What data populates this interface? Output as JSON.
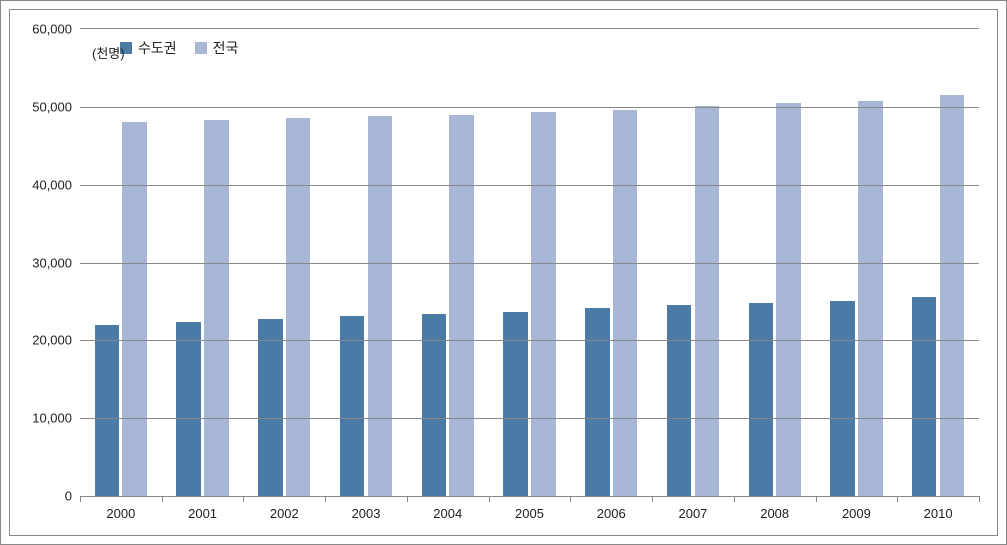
{
  "chart": {
    "type": "bar",
    "unit_label": "(천명)",
    "ylim": [
      0,
      60000
    ],
    "ytick_step": 10000,
    "y_ticks": [
      0,
      10000,
      20000,
      30000,
      40000,
      50000,
      60000
    ],
    "y_tick_labels": [
      "0",
      "10,000",
      "20,000",
      "30,000",
      "40,000",
      "50,000",
      "60,000"
    ],
    "categories": [
      "2000",
      "2001",
      "2002",
      "2003",
      "2004",
      "2005",
      "2006",
      "2007",
      "2008",
      "2009",
      "2010"
    ],
    "series": [
      {
        "name": "수도권",
        "color": "#4a7ba6",
        "values": [
          22000,
          22400,
          22800,
          23100,
          23400,
          23700,
          24100,
          24500,
          24800,
          25000,
          25600
        ]
      },
      {
        "name": "전국",
        "color": "#a8b7d5",
        "values": [
          48000,
          48300,
          48600,
          48800,
          49000,
          49300,
          49600,
          50100,
          50500,
          50700,
          51500
        ]
      }
    ],
    "grid_color": "#888888",
    "background_color": "#ffffff",
    "border_color": "#888888",
    "bar_width_ratio": 0.3,
    "bar_gap_ratio": 0.04,
    "label_fontsize": 13,
    "legend_fontsize": 14
  }
}
